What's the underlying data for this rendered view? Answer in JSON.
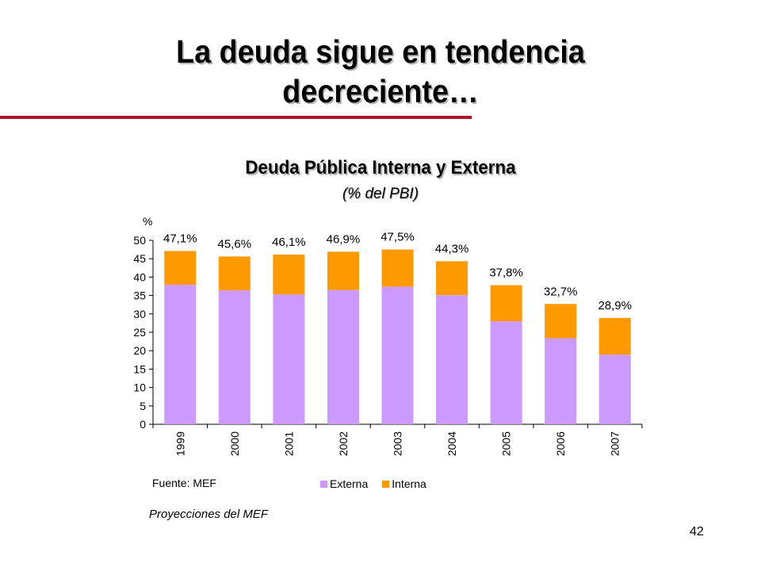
{
  "slide": {
    "title": "La deuda sigue en tendencia decreciente…",
    "page_number": "42",
    "projection_note": "Proyecciones del MEF"
  },
  "colors": {
    "title_rule": "#b0142c",
    "externa": "#cc99ff",
    "interna": "#ff9900"
  },
  "chart_data": {
    "type": "bar",
    "stacked": true,
    "title": "Deuda Pública Interna y Externa",
    "subtitle": "(% del PBI)",
    "ylabel": "%",
    "ylim": [
      0,
      50
    ],
    "yticks": [
      0,
      5,
      10,
      15,
      20,
      25,
      30,
      35,
      40,
      45,
      50
    ],
    "categories": [
      "1999",
      "2000",
      "2001",
      "2002",
      "2003",
      "2004",
      "2005",
      "2006",
      "2007"
    ],
    "series": [
      {
        "name": "Externa",
        "color": "#cc99ff",
        "values": [
          37.9,
          36.4,
          35.3,
          36.5,
          37.4,
          35.1,
          28.0,
          23.4,
          18.9
        ]
      },
      {
        "name": "Interna",
        "color": "#ff9900",
        "values": [
          9.2,
          9.2,
          10.8,
          10.4,
          10.1,
          9.2,
          9.8,
          9.3,
          10.0
        ]
      }
    ],
    "totals": [
      "47,1%",
      "45,6%",
      "46,1%",
      "46,9%",
      "47,5%",
      "44,3%",
      "37,8%",
      "32,7%",
      "28,9%"
    ],
    "source": "Fuente: MEF",
    "legend_position": "bottom",
    "grid": false
  }
}
